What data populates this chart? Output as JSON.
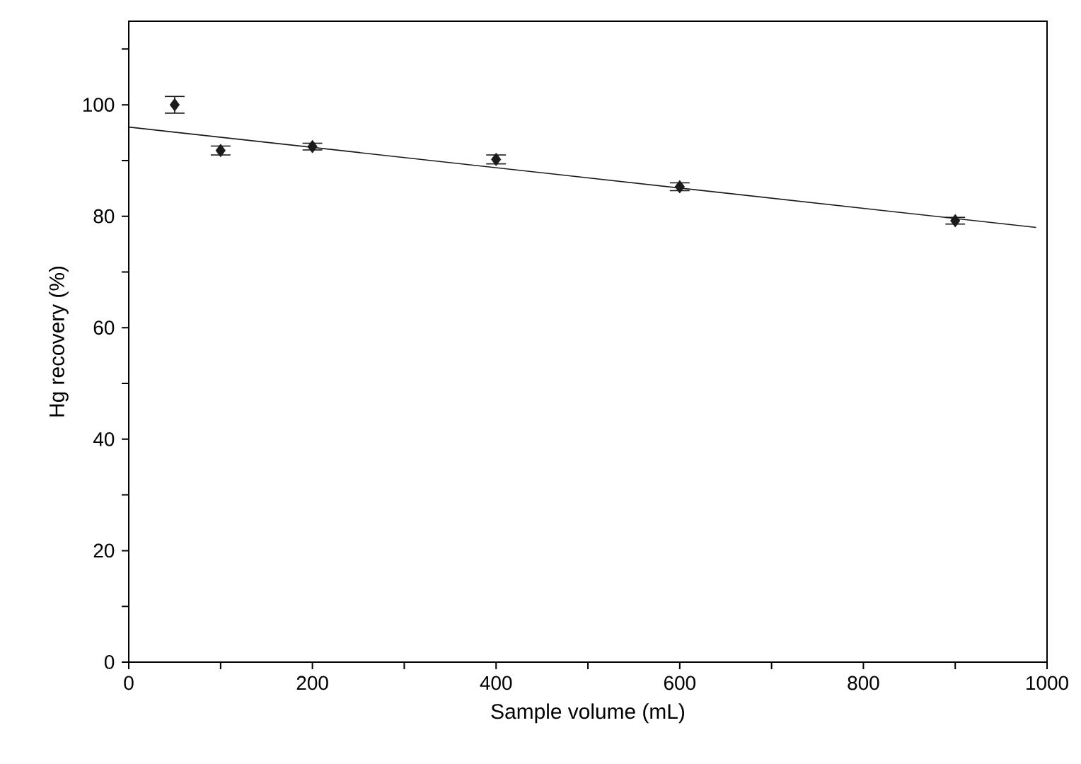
{
  "chart_data": {
    "type": "scatter",
    "xlabel": "Sample volume (mL)",
    "ylabel": "Hg recovery (%)",
    "x": [
      50,
      100,
      200,
      400,
      600,
      900
    ],
    "series": [
      {
        "color": "#1a1a1a",
        "marker": "diamond",
        "values": [
          100,
          91.8,
          92.5,
          90.2,
          85.3,
          79.2
        ],
        "errors": [
          1.5,
          0.8,
          0.6,
          0.8,
          0.7,
          0.6
        ]
      },
      {
        "type": "line",
        "color": "#1a1a1a",
        "marker": "none",
        "line_style": "solid",
        "x": [
          0,
          988
        ],
        "values": [
          96,
          78
        ]
      }
    ],
    "xlim": [
      0,
      1000
    ],
    "ylim": [
      0,
      115
    ],
    "xticks": [
      0,
      {
        "value": 100,
        "label": null
      },
      200,
      {
        "value": 300,
        "label": null
      },
      400,
      {
        "value": 500,
        "label": null
      },
      600,
      {
        "value": 700,
        "label": null
      },
      800,
      {
        "value": 900,
        "label": null
      },
      1000
    ],
    "yticks": [
      0,
      {
        "value": 10,
        "label": null
      },
      20,
      {
        "value": 30,
        "label": null
      },
      40,
      {
        "value": 50,
        "label": null
      },
      60,
      {
        "value": 70,
        "label": null
      },
      80,
      {
        "value": 90,
        "label": null
      },
      100,
      {
        "value": 110,
        "label": null
      }
    ]
  }
}
